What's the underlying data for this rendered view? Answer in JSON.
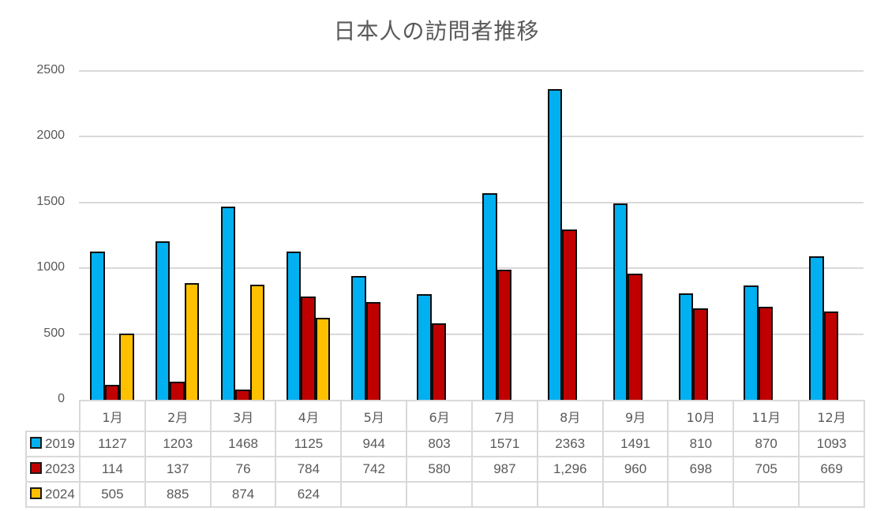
{
  "title": "日本人の訪問者推移",
  "yaxis": {
    "ticks": [
      "0",
      "500",
      "1000",
      "1500",
      "2000",
      "2500"
    ],
    "min": 0,
    "max": 2500
  },
  "categories": [
    "1月",
    "2月",
    "3月",
    "4月",
    "5月",
    "6月",
    "7月",
    "8月",
    "9月",
    "10月",
    "11月",
    "12月"
  ],
  "series": [
    {
      "name": "2019",
      "color": "#00b0f0",
      "values": [
        1127,
        1203,
        1468,
        1125,
        944,
        803,
        1571,
        2363,
        1491,
        810,
        870,
        1093
      ],
      "labels": [
        "1127",
        "1203",
        "1468",
        "1125",
        "944",
        "803",
        "1571",
        "2363",
        "1491",
        "810",
        "870",
        "1093"
      ]
    },
    {
      "name": "2023",
      "color": "#c00000",
      "values": [
        114,
        137,
        76,
        784,
        742,
        580,
        987,
        1296,
        960,
        698,
        705,
        669
      ],
      "labels": [
        "114",
        "137",
        "76",
        "784",
        "742",
        "580",
        "987",
        "1,296",
        "960",
        "698",
        "705",
        "669"
      ]
    },
    {
      "name": "2024",
      "color": "#ffc000",
      "values": [
        505,
        885,
        874,
        624,
        null,
        null,
        null,
        null,
        null,
        null,
        null,
        null
      ],
      "labels": [
        "505",
        "885",
        "874",
        "624",
        "",
        "",
        "",
        "",
        "",
        "",
        "",
        ""
      ]
    }
  ],
  "chart_data": {
    "type": "bar",
    "title": "日本人の訪問者推移",
    "xlabel": "",
    "ylabel": "",
    "ylim": [
      0,
      2500
    ],
    "yticks": [
      0,
      500,
      1000,
      1500,
      2000,
      2500
    ],
    "grid": true,
    "legend_position": "data-table",
    "categories": [
      "1月",
      "2月",
      "3月",
      "4月",
      "5月",
      "6月",
      "7月",
      "8月",
      "9月",
      "10月",
      "11月",
      "12月"
    ],
    "series": [
      {
        "name": "2019",
        "color": "#00b0f0",
        "values": [
          1127,
          1203,
          1468,
          1125,
          944,
          803,
          1571,
          2363,
          1491,
          810,
          870,
          1093
        ]
      },
      {
        "name": "2023",
        "color": "#c00000",
        "values": [
          114,
          137,
          76,
          784,
          742,
          580,
          987,
          1296,
          960,
          698,
          705,
          669
        ]
      },
      {
        "name": "2024",
        "color": "#ffc000",
        "values": [
          505,
          885,
          874,
          624,
          null,
          null,
          null,
          null,
          null,
          null,
          null,
          null
        ]
      }
    ]
  }
}
